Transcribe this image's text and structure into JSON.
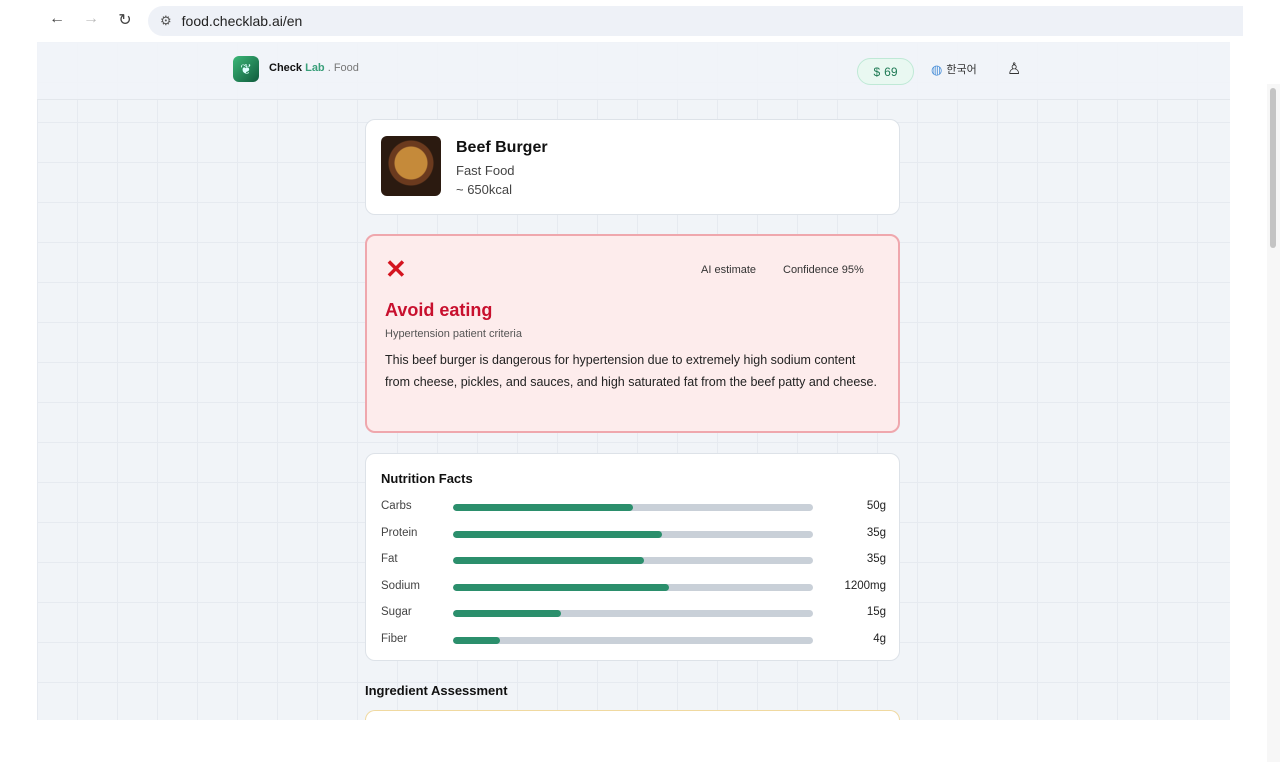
{
  "browser": {
    "url": "food.checklab.ai/en"
  },
  "header": {
    "brand_main": "Check",
    "brand_accent": "Lab",
    "brand_sub": ". Food",
    "credits": "69",
    "language": "한국어"
  },
  "food": {
    "name": "Beef Burger",
    "category": "Fast Food",
    "calories": "~ 650kcal"
  },
  "verdict": {
    "ai_label": "AI estimate",
    "confidence": "Confidence 95%",
    "title": "Avoid eating",
    "criteria": "Hypertension patient criteria",
    "description": "This beef burger is dangerous for hypertension due to extremely high sodium content from cheese, pickles, and sauces, and high saturated fat from the beef patty and cheese.",
    "color": "#c8102e"
  },
  "nutrition": {
    "title": "Nutrition Facts",
    "items": [
      {
        "label": "Carbs",
        "value": "50g",
        "level": 0.5
      },
      {
        "label": "Protein",
        "value": "35g",
        "level": 0.58
      },
      {
        "label": "Fat",
        "value": "35g",
        "level": 0.53
      },
      {
        "label": "Sodium",
        "value": "1200mg",
        "level": 0.6
      },
      {
        "label": "Sugar",
        "value": "15g",
        "level": 0.3
      },
      {
        "label": "Fiber",
        "value": "4g",
        "level": 0.13
      }
    ]
  },
  "ingredients": {
    "title": "Ingredient Assessment"
  }
}
